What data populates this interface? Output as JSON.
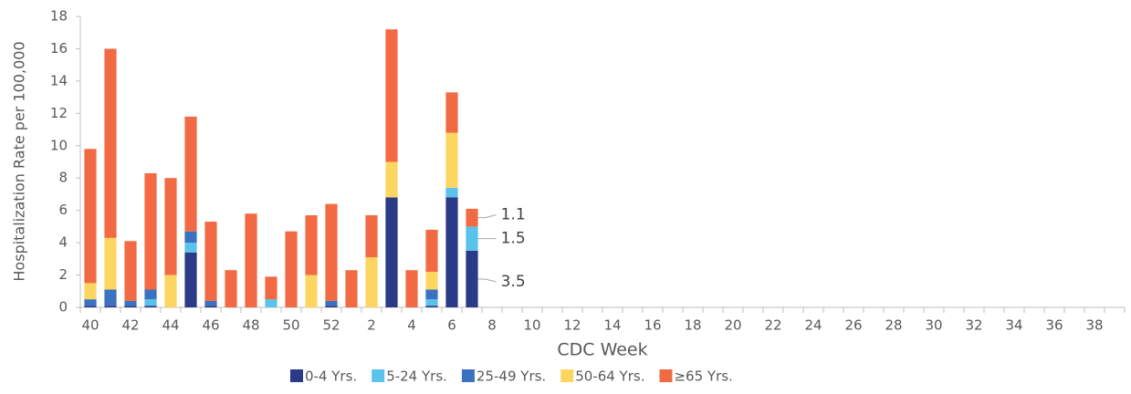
{
  "chart_data": {
    "type": "stacked_bar",
    "y_label": "Hospitalization Rate per 100,000",
    "x_label": "CDC Week",
    "categories": [
      "40",
      null,
      "42",
      null,
      "44",
      null,
      "46",
      null,
      "48",
      null,
      "50",
      null,
      "52",
      null,
      "2",
      null,
      "4",
      null,
      "6",
      null,
      "8",
      null,
      "10",
      null,
      "12",
      null,
      "14",
      null,
      "16",
      null,
      "18",
      null,
      "20",
      null,
      "22",
      null,
      "24",
      null,
      "26",
      null,
      "28",
      null,
      "30",
      null,
      "32",
      null,
      "34",
      null,
      "36",
      null,
      "38",
      null
    ],
    "series": [
      {
        "name": "0-4 Yrs.",
        "color": "#2b3a86",
        "values": [
          0.1,
          0.1,
          0.1,
          0.1,
          0,
          3.4,
          0.1,
          0,
          0,
          0,
          0,
          0,
          0.1,
          0,
          0,
          6.8,
          0,
          0.1,
          6.8,
          3.5,
          null,
          null,
          null,
          null,
          null,
          null,
          null,
          null,
          null,
          null,
          null,
          null,
          null,
          null,
          null,
          null,
          null,
          null,
          null,
          null,
          null,
          null,
          null,
          null,
          null,
          null,
          null,
          null,
          null,
          null,
          null,
          null
        ]
      },
      {
        "name": "5-24 Yrs.",
        "color": "#5bc2ec",
        "values": [
          0,
          0,
          0,
          0.4,
          0,
          0.6,
          0,
          0,
          0,
          0.5,
          0,
          0,
          0,
          0,
          0,
          0,
          0,
          0.4,
          0.6,
          1.5,
          null,
          null,
          null,
          null,
          null,
          null,
          null,
          null,
          null,
          null,
          null,
          null,
          null,
          null,
          null,
          null,
          null,
          null,
          null,
          null,
          null,
          null,
          null,
          null,
          null,
          null,
          null,
          null,
          null,
          null,
          null,
          null
        ]
      },
      {
        "name": "25-49 Yrs.",
        "color": "#3a72c0",
        "values": [
          0.4,
          1.0,
          0.3,
          0.6,
          0,
          0.7,
          0.3,
          0,
          0,
          0,
          0,
          0,
          0.3,
          0,
          0,
          0,
          0,
          0.6,
          0,
          0,
          null,
          null,
          null,
          null,
          null,
          null,
          null,
          null,
          null,
          null,
          null,
          null,
          null,
          null,
          null,
          null,
          null,
          null,
          null,
          null,
          null,
          null,
          null,
          null,
          null,
          null,
          null,
          null,
          null,
          null,
          null,
          null
        ]
      },
      {
        "name": "50-64 Yrs.",
        "color": "#fdd662",
        "values": [
          1.0,
          3.2,
          0,
          0,
          2.0,
          0,
          0,
          0,
          0,
          0,
          0,
          2.0,
          0,
          0,
          3.1,
          2.2,
          0,
          1.1,
          3.4,
          0,
          null,
          null,
          null,
          null,
          null,
          null,
          null,
          null,
          null,
          null,
          null,
          null,
          null,
          null,
          null,
          null,
          null,
          null,
          null,
          null,
          null,
          null,
          null,
          null,
          null,
          null,
          null,
          null,
          null,
          null,
          null,
          null
        ]
      },
      {
        "name": "≥65 Yrs.",
        "color": "#f26a43",
        "values": [
          8.3,
          11.7,
          3.7,
          7.2,
          6.0,
          7.1,
          4.9,
          2.3,
          5.8,
          1.4,
          4.7,
          3.7,
          6.0,
          2.3,
          2.6,
          8.2,
          2.3,
          2.6,
          2.5,
          1.1,
          null,
          null,
          null,
          null,
          null,
          null,
          null,
          null,
          null,
          null,
          null,
          null,
          null,
          null,
          null,
          null,
          null,
          null,
          null,
          null,
          null,
          null,
          null,
          null,
          null,
          null,
          null,
          null,
          null,
          null,
          null,
          null
        ]
      }
    ],
    "ylim": [
      0,
      18
    ],
    "yticks": [
      0,
      2,
      4,
      6,
      8,
      10,
      12,
      14,
      16,
      18
    ]
  }
}
